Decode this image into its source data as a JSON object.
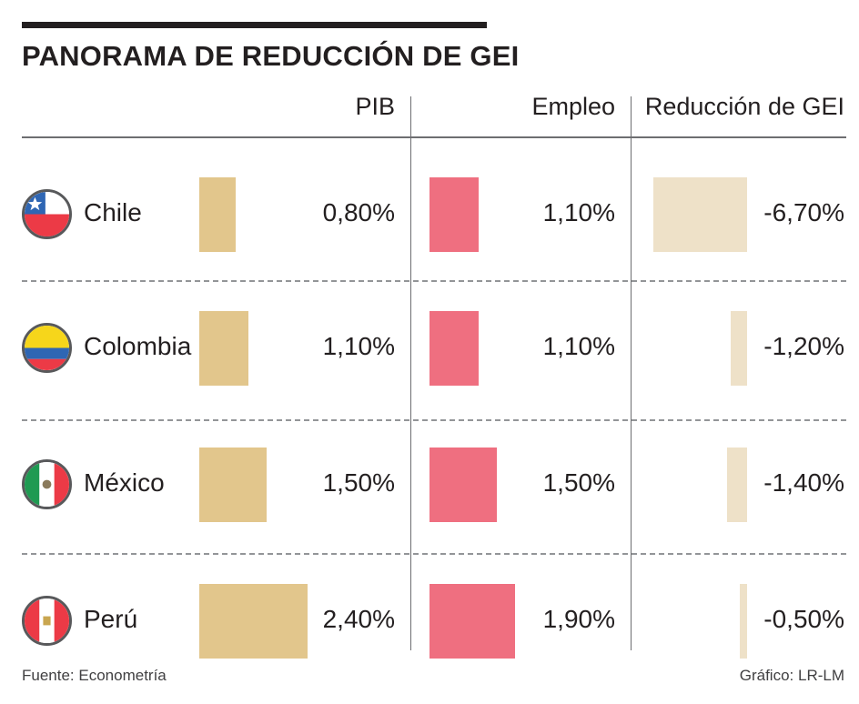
{
  "title": "PANORAMA DE REDUCCIÓN DE GEI",
  "columns": [
    "PIB",
    "Empleo",
    "Reducción de GEI"
  ],
  "rows": [
    {
      "country": "Chile",
      "pib": "0,80%",
      "empleo": "1,10%",
      "gei": "-6,70%",
      "flag_icon": "chile-flag-icon"
    },
    {
      "country": "Colombia",
      "pib": "1,10%",
      "empleo": "1,10%",
      "gei": "-1,20%",
      "flag_icon": "colombia-flag-icon"
    },
    {
      "country": "México",
      "pib": "1,50%",
      "empleo": "1,50%",
      "gei": "-1,40%",
      "flag_icon": "mexico-flag-icon"
    },
    {
      "country": "Perú",
      "pib": "2,40%",
      "empleo": "1,90%",
      "gei": "-0,50%",
      "flag_icon": "peru-flag-icon"
    }
  ],
  "footer": {
    "source": "Fuente: Econometría",
    "credit": "Gráfico: LR-LM"
  },
  "colors": {
    "pib": "#e2c68c",
    "empleo": "#ef6f80",
    "gei": "#eee1c8",
    "text": "#231f20"
  },
  "chart_data": {
    "type": "bar",
    "title": "PANORAMA DE REDUCCIÓN DE GEI",
    "categories": [
      "Chile",
      "Colombia",
      "México",
      "Perú"
    ],
    "series": [
      {
        "name": "PIB",
        "values": [
          0.8,
          1.1,
          1.5,
          2.4
        ]
      },
      {
        "name": "Empleo",
        "values": [
          1.1,
          1.1,
          1.5,
          1.9
        ]
      },
      {
        "name": "Reducción de GEI",
        "values": [
          -6.7,
          -1.2,
          -1.4,
          -0.5
        ]
      }
    ],
    "unit": "%",
    "grid": false,
    "legend": "none"
  }
}
